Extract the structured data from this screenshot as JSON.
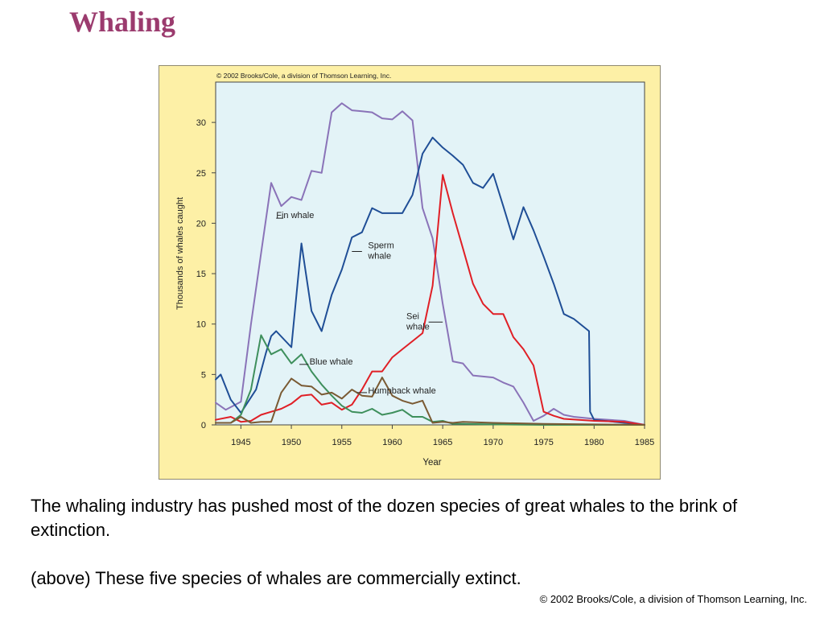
{
  "slide": {
    "title": "Whaling",
    "caption_1": "The whaling industry has pushed most of the dozen species of great whales to the brink of extinction.",
    "caption_2": "(above) These five species of whales are commercially extinct.",
    "footer_copyright": "© 2002 Brooks/Cole, a division of Thomson Learning, Inc."
  },
  "colors": {
    "title": "#9b3b6e",
    "figure_bg": "#fdf0a6",
    "plot_bg": "#e3f3f7"
  },
  "chart_data": {
    "type": "line",
    "copyright": "© 2002 Brooks/Cole, a division of Thomson Learning, Inc.",
    "xlabel": "Year",
    "ylabel": "Thousands of whales caught",
    "xlim": [
      1942.5,
      1985
    ],
    "ylim": [
      0,
      34
    ],
    "xticks": [
      "1945",
      "1950",
      "1955",
      "1960",
      "1965",
      "1970",
      "1975",
      "1980",
      "1985"
    ],
    "yticks": [
      "0",
      "5",
      "10",
      "15",
      "20",
      "25",
      "30"
    ],
    "grid": false,
    "series": [
      {
        "name": "Fin whale",
        "color": "#8a73b8",
        "x": [
          1942.5,
          1943.5,
          1945,
          1946,
          1947,
          1948,
          1949,
          1950,
          1951,
          1952,
          1953,
          1954,
          1955,
          1956,
          1957,
          1958,
          1959,
          1960,
          1961,
          1962,
          1963,
          1964,
          1965,
          1966,
          1967,
          1968,
          1969,
          1970,
          1971,
          1972,
          1973,
          1974,
          1975,
          1976,
          1977,
          1978,
          1980,
          1983,
          1985
        ],
        "y": [
          2.2,
          1.5,
          2.3,
          10,
          17,
          24,
          21.7,
          22.6,
          22.3,
          25.2,
          25,
          31,
          31.9,
          31.2,
          31.1,
          31,
          30.4,
          30.3,
          31.1,
          30.2,
          21.5,
          18.5,
          12,
          6.3,
          6.1,
          4.9,
          4.8,
          4.7,
          4.2,
          3.8,
          2.2,
          0.4,
          0.9,
          1.6,
          1.0,
          0.8,
          0.6,
          0.4,
          0.0
        ]
      },
      {
        "name": "Sperm whale",
        "label_lines": [
          "Sperm",
          "whale"
        ],
        "color": "#1f4e96",
        "x": [
          1942.5,
          1943,
          1944,
          1945,
          1946.5,
          1947.5,
          1948,
          1948.5,
          1950,
          1951,
          1952,
          1953,
          1954,
          1955,
          1956,
          1957,
          1958,
          1959,
          1960,
          1961,
          1962,
          1963,
          1964,
          1965,
          1966,
          1967,
          1968,
          1969,
          1970,
          1971,
          1972,
          1973,
          1974,
          1975,
          1976,
          1977,
          1978,
          1979.5,
          1979.6,
          1980,
          1985
        ],
        "y": [
          4.5,
          5.0,
          2.5,
          1.2,
          3.5,
          7.2,
          8.8,
          9.3,
          7.7,
          18.0,
          11.3,
          9.3,
          12.9,
          15.4,
          18.6,
          19.1,
          21.5,
          21.0,
          21.0,
          21.0,
          22.8,
          26.9,
          28.5,
          27.5,
          26.7,
          25.8,
          24.0,
          23.5,
          24.9,
          21.7,
          18.4,
          21.6,
          19.3,
          16.7,
          14.0,
          11.0,
          10.5,
          9.3,
          1.3,
          0.5,
          0.0
        ]
      },
      {
        "name": "Sei whale",
        "label_lines": [
          "Sei",
          "whale"
        ],
        "color": "#e01f26",
        "x": [
          1942.5,
          1944,
          1945,
          1946,
          1947,
          1948,
          1949,
          1950,
          1951,
          1952,
          1953,
          1954,
          1955,
          1956,
          1957,
          1958,
          1959,
          1960,
          1961,
          1962,
          1963,
          1964,
          1965,
          1966,
          1967,
          1968,
          1969,
          1970,
          1971,
          1972,
          1973,
          1974,
          1975,
          1976,
          1977,
          1980,
          1983,
          1985
        ],
        "y": [
          0.5,
          0.8,
          0.3,
          0.4,
          1.0,
          1.3,
          1.6,
          2.1,
          2.9,
          3.0,
          2.0,
          2.2,
          1.5,
          2.0,
          3.5,
          5.3,
          5.3,
          6.7,
          7.5,
          8.3,
          9.1,
          13.8,
          24.8,
          21.0,
          17.5,
          14.0,
          12.0,
          11.0,
          11.0,
          8.7,
          7.5,
          5.9,
          1.3,
          0.9,
          0.6,
          0.4,
          0.3,
          0.0
        ]
      },
      {
        "name": "Blue whale",
        "color": "#3e8f5c",
        "x": [
          1942.5,
          1944,
          1945,
          1946,
          1947,
          1948,
          1949,
          1950,
          1951,
          1952,
          1953,
          1954,
          1955,
          1956,
          1957,
          1958,
          1959,
          1960,
          1961,
          1962,
          1963,
          1964,
          1965,
          1966,
          1967,
          1970,
          1975,
          1985
        ],
        "y": [
          0.2,
          0.2,
          1.0,
          3.5,
          8.9,
          7.0,
          7.5,
          6.1,
          7.0,
          5.3,
          4.0,
          2.9,
          1.9,
          1.3,
          1.2,
          1.6,
          1.0,
          1.2,
          1.5,
          0.8,
          0.8,
          0.3,
          0.4,
          0.1,
          0.1,
          0.05,
          0.0,
          0.0
        ]
      },
      {
        "name": "Humpback whale",
        "color": "#7a5a33",
        "x": [
          1942.5,
          1944,
          1945,
          1946,
          1947,
          1948,
          1949,
          1950,
          1951,
          1952,
          1953,
          1954,
          1955,
          1956,
          1957,
          1958,
          1959,
          1960,
          1961,
          1962,
          1963,
          1964,
          1965,
          1966,
          1967,
          1970,
          1975,
          1985
        ],
        "y": [
          0.2,
          0.2,
          0.8,
          0.2,
          0.3,
          0.3,
          3.2,
          4.6,
          3.9,
          3.8,
          3.0,
          3.2,
          2.6,
          3.5,
          2.9,
          2.8,
          4.7,
          2.9,
          2.4,
          2.1,
          2.4,
          0.2,
          0.3,
          0.2,
          0.3,
          0.2,
          0.1,
          0.0
        ]
      }
    ]
  }
}
